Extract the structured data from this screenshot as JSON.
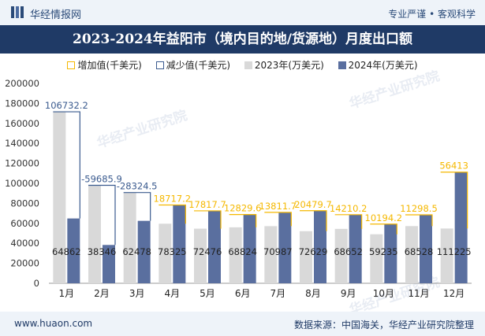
{
  "header": {
    "brand": "华经情报网",
    "tagline": "专业严谨 • 客观科学"
  },
  "title": "2023-2024年益阳市（境内目的地/货源地）月度出口额",
  "legend": {
    "inc": "增加值(千美元)",
    "dec": "减少值(千美元)",
    "y2023": "2023年(万美元)",
    "y2024": "2024年(万美元)"
  },
  "watermark": "华经产业研究院",
  "colors": {
    "bar2023": "#d9d9d9",
    "bar2024": "#5a6f9f",
    "increase": "#f5b800",
    "decrease": "#3b5b8f"
  },
  "chart_data": {
    "type": "bar",
    "categories": [
      "1月",
      "2月",
      "3月",
      "4月",
      "5月",
      "6月",
      "7月",
      "8月",
      "9月",
      "10月",
      "11月",
      "12月"
    ],
    "series": [
      {
        "name": "2023年(万美元)",
        "values": [
          171594,
          98031,
          90802,
          59608,
          54658,
          55994,
          57175,
          52149,
          54442,
          49041,
          57229,
          54812
        ]
      },
      {
        "name": "2024年(万美元)",
        "values": [
          64862,
          38346,
          62478,
          78325,
          72476,
          68824,
          70987,
          72629,
          68652,
          59235,
          68528,
          111225
        ]
      }
    ],
    "changes": [
      {
        "label": "106732.2",
        "type": "decrease"
      },
      {
        "label": "-59685.9",
        "type": "decrease"
      },
      {
        "label": "-28324.5",
        "type": "decrease"
      },
      {
        "label": "18717.2",
        "type": "increase"
      },
      {
        "label": "17817.7",
        "type": "increase"
      },
      {
        "label": "12829.6",
        "type": "increase"
      },
      {
        "label": "13811.7",
        "type": "increase"
      },
      {
        "label": "20479.7",
        "type": "increase"
      },
      {
        "label": "14210.2",
        "type": "increase"
      },
      {
        "label": "10194.2",
        "type": "increase"
      },
      {
        "label": "11298.5",
        "type": "increase"
      },
      {
        "label": "56413",
        "type": "increase"
      }
    ],
    "bar_labels": [
      "64862",
      "38346",
      "62478",
      "78325",
      "72476",
      "68824",
      "70987",
      "72629",
      "68652",
      "59235",
      "68528",
      "111225"
    ],
    "yticks": [
      0,
      20000,
      40000,
      60000,
      80000,
      100000,
      120000,
      140000,
      160000,
      180000,
      200000
    ],
    "ylim": [
      0,
      200000
    ],
    "grid": false,
    "legend_position": "top"
  },
  "footer": {
    "site": "www.huaon.com",
    "source": "数据来源：中国海关，华经产业研究院整理"
  }
}
